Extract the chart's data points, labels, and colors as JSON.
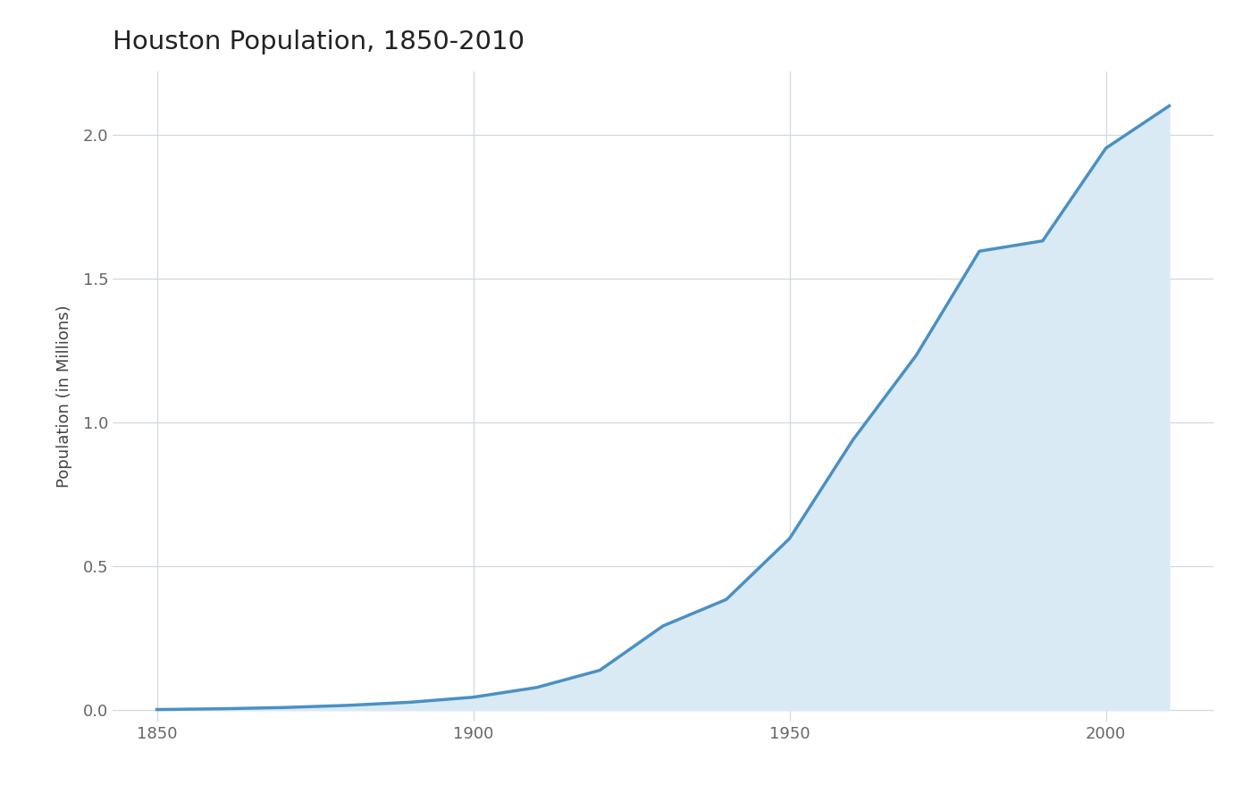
{
  "title": "Houston Population, 1850-2010",
  "xlabel": "",
  "ylabel": "Population (in Millions)",
  "years": [
    1850,
    1860,
    1870,
    1880,
    1890,
    1900,
    1910,
    1920,
    1930,
    1940,
    1950,
    1960,
    1970,
    1980,
    1990,
    2000,
    2010
  ],
  "population": [
    0.0021,
    0.0046,
    0.009,
    0.0164,
    0.0274,
    0.0449,
    0.0786,
    0.1384,
    0.2927,
    0.3847,
    0.5964,
    0.9389,
    1.2325,
    1.595,
    1.6309,
    1.9531,
    2.1
  ],
  "line_color": "#4a90c4",
  "fill_color": "#daeaf5",
  "fill_alpha": 1.0,
  "background_color": "#ffffff",
  "grid_color": "#d0d8e0",
  "title_fontsize": 21,
  "label_fontsize": 13,
  "tick_fontsize": 13,
  "xlim": [
    1843,
    2017
  ],
  "ylim": [
    -0.04,
    2.22
  ],
  "yticks": [
    0.0,
    0.5,
    1.0,
    1.5,
    2.0
  ],
  "xticks": [
    1850,
    1900,
    1950,
    2000
  ]
}
